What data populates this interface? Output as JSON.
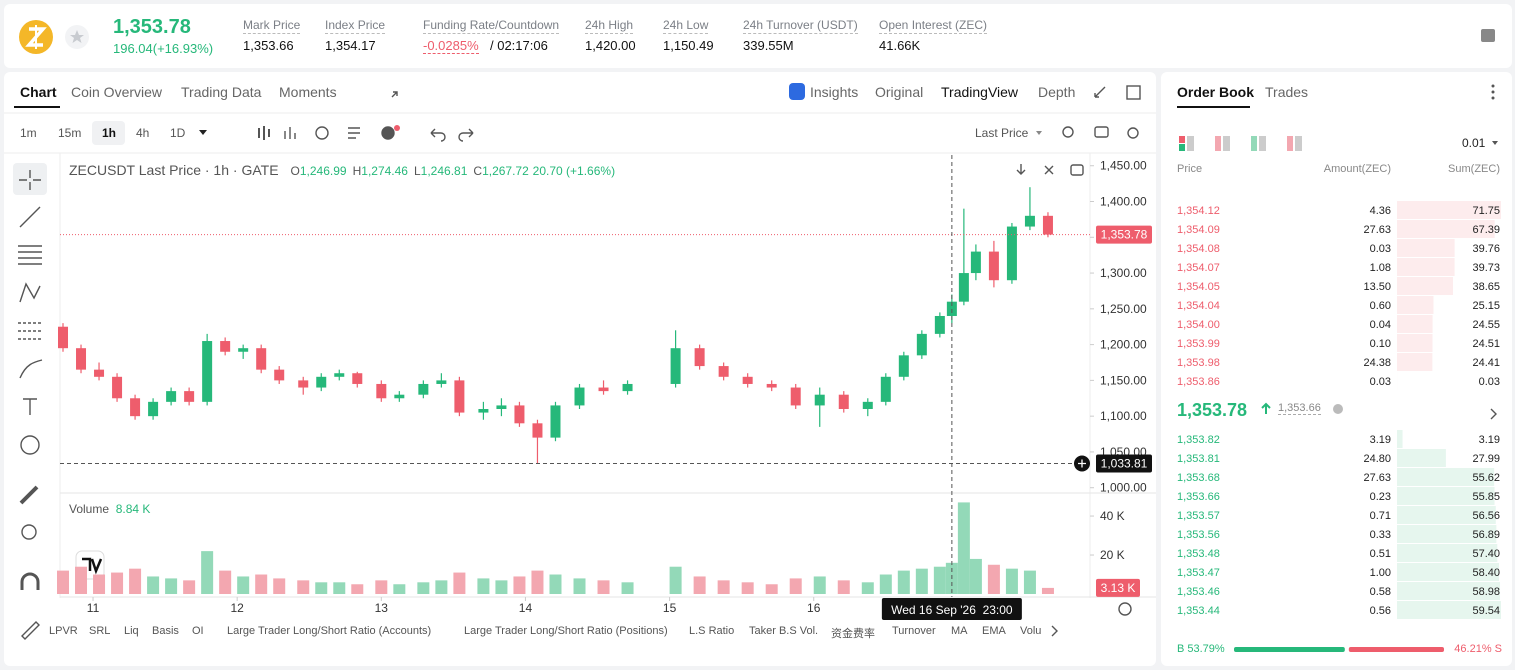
{
  "header": {
    "price": "1,353.78",
    "change": "196.04(+16.93%)",
    "stats": [
      {
        "label": "Mark Price",
        "value": "1,353.66"
      },
      {
        "label": "Index Price",
        "value": "1,354.17"
      },
      {
        "label": "Funding Rate/Countdown",
        "value": "-0.0285%",
        "extra": "/ 02:17:06"
      },
      {
        "label": "24h High",
        "value": "1,420.00"
      },
      {
        "label": "24h Low",
        "value": "1,150.49"
      },
      {
        "label": "24h Turnover (USDT)",
        "value": "339.55M"
      },
      {
        "label": "Open Interest (ZEC)",
        "value": "41.66K"
      }
    ]
  },
  "tabs": [
    "Chart",
    "Coin Overview",
    "Trading Data",
    "Moments"
  ],
  "views": [
    "Insights",
    "Original",
    "TradingView",
    "Depth"
  ],
  "intervals": [
    "1m",
    "15m",
    "1h",
    "4h",
    "1D"
  ],
  "price_source": "Last Price",
  "chart_data": {
    "type": "candlestick",
    "title": "ZECUSDT Last Price · 1h · GATE",
    "ohlc_legend": [
      {
        "key": "O",
        "value": "1,246.99"
      },
      {
        "key": "H",
        "value": "1,274.46"
      },
      {
        "key": "L",
        "value": "1,246.81"
      },
      {
        "key": "C",
        "value": "1,267.72"
      }
    ],
    "legend_change": "20.70 (+1.66%)",
    "volume_title": "Volume",
    "volume_value": "8.84 K",
    "up_color": "#26b87a",
    "down_color": "#ee5d6c",
    "volume_up_color": "#93d9b8",
    "volume_down_color": "#f3a7b0",
    "candles": [
      [
        -5,
        1225,
        1230,
        1190,
        1195,
        12000
      ],
      [
        -2,
        1195,
        1200,
        1160,
        1165,
        14000
      ],
      [
        1,
        1165,
        1175,
        1150,
        1155,
        10000
      ],
      [
        4,
        1155,
        1160,
        1120,
        1125,
        11000
      ],
      [
        7,
        1125,
        1130,
        1095,
        1100,
        13000
      ],
      [
        10,
        1100,
        1125,
        1095,
        1120,
        9000
      ],
      [
        13,
        1120,
        1140,
        1115,
        1135,
        8000
      ],
      [
        16,
        1135,
        1140,
        1115,
        1120,
        7000
      ],
      [
        19,
        1120,
        1215,
        1115,
        1205,
        22000
      ],
      [
        22,
        1205,
        1210,
        1185,
        1190,
        12000
      ],
      [
        25,
        1190,
        1200,
        1180,
        1195,
        9000
      ],
      [
        28,
        1195,
        1200,
        1160,
        1165,
        10000
      ],
      [
        31,
        1165,
        1170,
        1145,
        1150,
        8000
      ],
      [
        35,
        1150,
        1155,
        1130,
        1140,
        7000
      ],
      [
        38,
        1140,
        1160,
        1135,
        1155,
        6000
      ],
      [
        41,
        1155,
        1165,
        1150,
        1160,
        6000
      ],
      [
        44,
        1160,
        1162,
        1140,
        1145,
        5000
      ],
      [
        48,
        1145,
        1150,
        1120,
        1125,
        7000
      ],
      [
        51,
        1125,
        1135,
        1120,
        1130,
        5000
      ],
      [
        55,
        1130,
        1150,
        1125,
        1145,
        6000
      ],
      [
        58,
        1145,
        1160,
        1140,
        1150,
        7000
      ],
      [
        61,
        1150,
        1155,
        1100,
        1105,
        11000
      ],
      [
        65,
        1105,
        1120,
        1095,
        1110,
        8000
      ],
      [
        68,
        1110,
        1125,
        1100,
        1115,
        7000
      ],
      [
        71,
        1115,
        1120,
        1085,
        1090,
        9000
      ],
      [
        74,
        1090,
        1095,
        1033.81,
        1070,
        12000
      ],
      [
        77,
        1070,
        1120,
        1065,
        1115,
        10000
      ],
      [
        81,
        1115,
        1145,
        1110,
        1140,
        8000
      ],
      [
        85,
        1140,
        1150,
        1130,
        1135,
        7000
      ],
      [
        89,
        1135,
        1150,
        1130,
        1145,
        6000
      ],
      [
        97,
        1145,
        1220,
        1140,
        1195,
        14000
      ],
      [
        101,
        1195,
        1200,
        1165,
        1170,
        9000
      ],
      [
        105,
        1170,
        1175,
        1150,
        1155,
        7000
      ],
      [
        109,
        1155,
        1160,
        1140,
        1145,
        6000
      ],
      [
        113,
        1145,
        1150,
        1135,
        1140,
        5000
      ],
      [
        117,
        1140,
        1145,
        1110,
        1115,
        8000
      ],
      [
        121,
        1115,
        1140,
        1085,
        1130,
        9000
      ],
      [
        125,
        1130,
        1135,
        1105,
        1110,
        7000
      ],
      [
        129,
        1110,
        1125,
        1100,
        1120,
        6000
      ],
      [
        132,
        1120,
        1160,
        1115,
        1155,
        10000
      ],
      [
        135,
        1155,
        1190,
        1150,
        1185,
        12000
      ],
      [
        138,
        1185,
        1220,
        1180,
        1215,
        13000
      ],
      [
        141,
        1215,
        1245,
        1210,
        1240,
        14000
      ],
      [
        143,
        1240,
        1270,
        1230,
        1260,
        16000
      ],
      [
        145,
        1260,
        1390,
        1255,
        1300,
        47000
      ],
      [
        147,
        1300,
        1340,
        1290,
        1330,
        18000
      ],
      [
        150,
        1330,
        1345,
        1280,
        1290,
        15000
      ],
      [
        153,
        1290,
        1370,
        1285,
        1365,
        13000
      ],
      [
        156,
        1365,
        1420,
        1360,
        1380,
        12000
      ],
      [
        159,
        1380,
        1385,
        1350,
        1353.78,
        3130
      ]
    ],
    "xlim": [
      -5.5,
      166
    ],
    "xticks": [
      {
        "value": 0,
        "label": "11"
      },
      {
        "value": 24,
        "label": "12"
      },
      {
        "value": 48,
        "label": "13"
      },
      {
        "value": 72,
        "label": "14"
      },
      {
        "value": 96,
        "label": "15"
      },
      {
        "value": 120,
        "label": "16"
      }
    ],
    "ylim": [
      994,
      1465
    ],
    "yticks": [
      {
        "value": 1000,
        "label": "1,000.00"
      },
      {
        "value": 1050,
        "label": "1,050.00"
      },
      {
        "value": 1100,
        "label": "1,100.00"
      },
      {
        "value": 1150,
        "label": "1,150.00"
      },
      {
        "value": 1200,
        "label": "1,200.00"
      },
      {
        "value": 1250,
        "label": "1,250.00"
      },
      {
        "value": 1300,
        "label": "1,300.00"
      },
      {
        "value": 1350,
        "label": "1,350.00"
      },
      {
        "value": 1400,
        "label": "1,400.00"
      },
      {
        "value": 1450,
        "label": "1,450.00"
      }
    ],
    "y2lim": [
      0,
      50800
    ],
    "y2ticks": [
      {
        "value": 20000,
        "label": "20 K"
      },
      {
        "value": 40000,
        "label": "40 K"
      }
    ],
    "grid": false,
    "last_price": {
      "value": 1353.78,
      "label": "1,353.78"
    },
    "crosshair_price": {
      "value": 1033.81,
      "label": "1,033.81"
    },
    "last_volume": {
      "value": 3130,
      "label": "3.13 K"
    },
    "crosshair_time": {
      "value": 143,
      "label": "Wed 16 Sep '26  23:00"
    }
  },
  "indicators": [
    "LPVR",
    "SRL",
    "Liq",
    "Basis",
    "OI",
    "Large Trader Long/Short Ratio (Accounts)",
    "Large Trader Long/Short Ratio (Positions)",
    "L.S Ratio",
    "Taker B.S Vol.",
    "资金费率",
    "Turnover",
    "MA",
    "EMA",
    "Volu"
  ],
  "order_book": {
    "tabs": [
      "Order Book",
      "Trades"
    ],
    "precision": "0.01",
    "headers": [
      "Price",
      "Amount(ZEC)",
      "Sum(ZEC)"
    ],
    "asks": [
      [
        "1,354.12",
        "4.36",
        "71.75"
      ],
      [
        "1,354.09",
        "27.63",
        "67.39"
      ],
      [
        "1,354.08",
        "0.03",
        "39.76"
      ],
      [
        "1,354.07",
        "1.08",
        "39.73"
      ],
      [
        "1,354.05",
        "13.50",
        "38.65"
      ],
      [
        "1,354.04",
        "0.60",
        "25.15"
      ],
      [
        "1,354.00",
        "0.04",
        "24.55"
      ],
      [
        "1,353.99",
        "0.10",
        "24.51"
      ],
      [
        "1,353.98",
        "24.38",
        "24.41"
      ],
      [
        "1,353.86",
        "0.03",
        "0.03"
      ]
    ],
    "last_price": "1,353.78",
    "mark_price": "1,353.66",
    "bids": [
      [
        "1,353.82",
        "3.19",
        "3.19"
      ],
      [
        "1,353.81",
        "24.80",
        "27.99"
      ],
      [
        "1,353.68",
        "27.63",
        "55.62"
      ],
      [
        "1,353.66",
        "0.23",
        "55.85"
      ],
      [
        "1,353.57",
        "0.71",
        "56.56"
      ],
      [
        "1,353.56",
        "0.33",
        "56.89"
      ],
      [
        "1,353.48",
        "0.51",
        "57.40"
      ],
      [
        "1,353.47",
        "1.00",
        "58.40"
      ],
      [
        "1,353.46",
        "0.58",
        "58.98"
      ],
      [
        "1,353.44",
        "0.56",
        "59.54"
      ]
    ],
    "ratio": {
      "buy": 53.79,
      "sell": 46.21,
      "value_labels": [
        "B 53.79%",
        "46.21% S"
      ]
    }
  }
}
